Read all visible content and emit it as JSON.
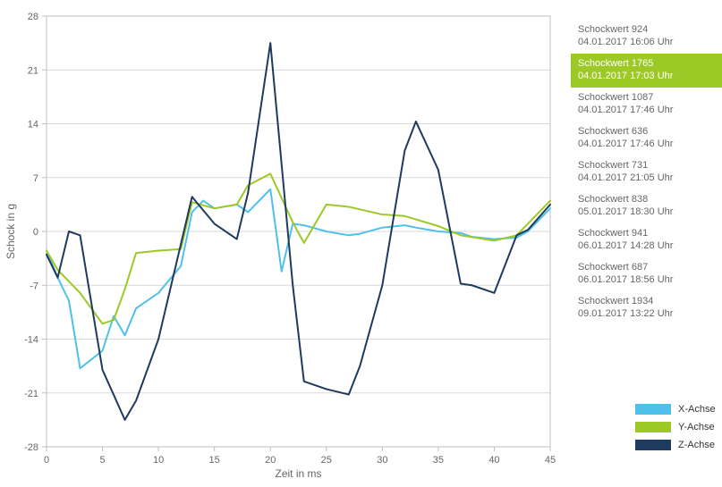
{
  "chart": {
    "type": "line",
    "background_color": "#ffffff",
    "plot_border_color": "#bfbfbf",
    "plot_border_width": 1,
    "grid_color": "#d9d9d9",
    "grid_width": 1,
    "x": {
      "title": "Zeit in ms",
      "lim": [
        0,
        45
      ],
      "ticks": [
        0,
        5,
        10,
        15,
        20,
        25,
        30,
        35,
        40,
        45
      ]
    },
    "y": {
      "title": "Schock in g",
      "lim": [
        -28,
        28
      ],
      "ticks": [
        -28,
        -21,
        -14,
        -7,
        0,
        7,
        14,
        21,
        28
      ]
    },
    "tick_fontsize": 11,
    "axis_title_fontsize": 12,
    "line_width": 2,
    "series": [
      {
        "name": "X-Achse",
        "color": "#4fc1e9",
        "x": [
          0,
          1,
          2,
          3,
          5,
          6,
          7,
          8,
          10,
          12,
          13,
          14,
          15,
          17,
          18,
          20,
          21,
          22,
          23,
          25,
          27,
          28,
          30,
          32,
          33,
          35,
          37,
          38,
          40,
          42,
          43,
          45
        ],
        "y": [
          -2.5,
          -6,
          -9,
          -17.8,
          -15.5,
          -11,
          -13.5,
          -10,
          -8,
          -4.5,
          2.5,
          4,
          3,
          3.5,
          2.5,
          5.5,
          -5.2,
          1,
          0.8,
          0,
          -0.5,
          -0.3,
          0.5,
          0.8,
          0.5,
          0,
          -0.2,
          -0.7,
          -1,
          -0.8,
          0,
          3
        ]
      },
      {
        "name": "Y-Achse",
        "color": "#9dc926",
        "x": [
          0,
          1,
          3,
          5,
          6,
          7,
          8,
          10,
          12,
          13,
          15,
          17,
          18,
          20,
          22,
          23,
          25,
          27,
          30,
          32,
          35,
          37,
          40,
          42,
          43,
          45
        ],
        "y": [
          -2.5,
          -5,
          -8,
          -12,
          -11.5,
          -7.5,
          -2.8,
          -2.5,
          -2.3,
          3.8,
          3,
          3.5,
          6,
          7.5,
          1.2,
          -1.5,
          3.5,
          3.2,
          2.2,
          2,
          0.7,
          -0.5,
          -1.2,
          -0.5,
          1,
          4
        ]
      },
      {
        "name": "Z-Achse",
        "color": "#1f3a5f",
        "x": [
          0,
          1,
          2,
          3,
          5,
          7,
          8,
          10,
          13,
          15,
          17,
          18,
          20,
          22,
          23,
          25,
          27,
          28,
          30,
          32,
          33,
          35,
          37,
          38,
          40,
          42,
          43,
          45
        ],
        "y": [
          -3,
          -6,
          0,
          -0.5,
          -18,
          -24.5,
          -22,
          -14,
          4.5,
          1,
          -1,
          5,
          24.5,
          -7,
          -19.5,
          -20.5,
          -21.2,
          -17.5,
          -7,
          10.5,
          14.3,
          8,
          -6.8,
          -7,
          -8,
          -0.5,
          0.2,
          3.5
        ]
      }
    ]
  },
  "legend": {
    "items": [
      {
        "label": "X-Achse",
        "color": "#4fc1e9"
      },
      {
        "label": "Y-Achse",
        "color": "#9dc926"
      },
      {
        "label": "Z-Achse",
        "color": "#1f3a5f"
      }
    ]
  },
  "sidebar": {
    "selected_index": 1,
    "selected_bg": "#9dc926",
    "selected_fg": "#ffffff",
    "item_fg": "#666666",
    "items": [
      {
        "title": "Schockwert 924",
        "ts": "04.01.2017 16:06 Uhr"
      },
      {
        "title": "Schockwert 1765",
        "ts": "04.01.2017 17:03 Uhr"
      },
      {
        "title": "Schockwert 1087",
        "ts": "04.01.2017 17:46 Uhr"
      },
      {
        "title": "Schockwert 636",
        "ts": "04.01.2017 17:46 Uhr"
      },
      {
        "title": "Schockwert 731",
        "ts": "04.01.2017 21:05 Uhr"
      },
      {
        "title": "Schockwert 838",
        "ts": "05.01.2017 18:30 Uhr"
      },
      {
        "title": "Schockwert 941",
        "ts": "06.01.2017 14:28 Uhr"
      },
      {
        "title": "Schockwert 687",
        "ts": "06.01.2017 18:56 Uhr"
      },
      {
        "title": "Schockwert 1934",
        "ts": "09.01.2017 13:22 Uhr"
      }
    ]
  }
}
